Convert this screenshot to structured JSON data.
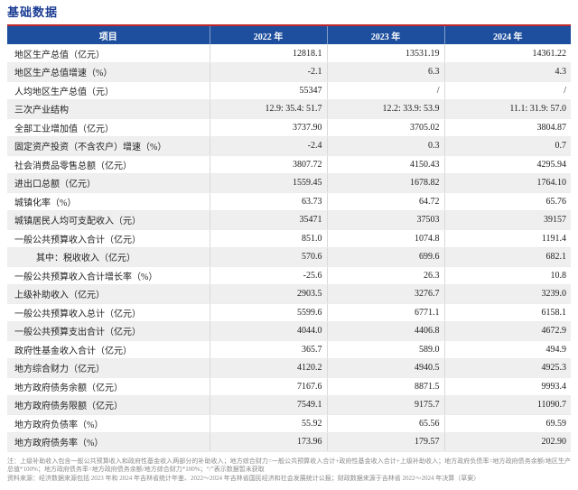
{
  "page": {
    "title": "基础数据"
  },
  "colors": {
    "header_bg": "#1e4f9e",
    "accent_red_line": "#c0272d",
    "title_blue": "#1c3d94",
    "alt_row_gray": "#efefef"
  },
  "table": {
    "columns": [
      "项目",
      "2022 年",
      "2023 年",
      "2024 年"
    ],
    "rows": [
      {
        "label": "地区生产总值（亿元）",
        "indent": false,
        "values": [
          "12818.1",
          "13531.19",
          "14361.22"
        ]
      },
      {
        "label": "地区生产总值增速（%）",
        "indent": false,
        "values": [
          "-2.1",
          "6.3",
          "4.3"
        ]
      },
      {
        "label": "人均地区生产总值（元）",
        "indent": false,
        "values": [
          "55347",
          "/",
          "/"
        ]
      },
      {
        "label": "三次产业结构",
        "indent": false,
        "values": [
          "12.9: 35.4: 51.7",
          "12.2: 33.9: 53.9",
          "11.1: 31.9: 57.0"
        ]
      },
      {
        "label": "全部工业增加值（亿元）",
        "indent": false,
        "values": [
          "3737.90",
          "3705.02",
          "3804.87"
        ]
      },
      {
        "label": "固定资产投资（不含农户）增速（%）",
        "indent": false,
        "values": [
          "-2.4",
          "0.3",
          "0.7"
        ]
      },
      {
        "label": "社会消费品零售总额（亿元）",
        "indent": false,
        "values": [
          "3807.72",
          "4150.43",
          "4295.94"
        ]
      },
      {
        "label": "进出口总额（亿元）",
        "indent": false,
        "values": [
          "1559.45",
          "1678.82",
          "1764.10"
        ]
      },
      {
        "label": "城镇化率（%）",
        "indent": false,
        "values": [
          "63.73",
          "64.72",
          "65.76"
        ]
      },
      {
        "label": "城镇居民人均可支配收入（元）",
        "indent": false,
        "values": [
          "35471",
          "37503",
          "39157"
        ]
      },
      {
        "label": "一般公共预算收入合计（亿元）",
        "indent": false,
        "values": [
          "851.0",
          "1074.8",
          "1191.4"
        ]
      },
      {
        "label": "其中：税收收入（亿元）",
        "indent": true,
        "values": [
          "570.6",
          "699.6",
          "682.1"
        ]
      },
      {
        "label": "一般公共预算收入合计增长率（%）",
        "indent": false,
        "values": [
          "-25.6",
          "26.3",
          "10.8"
        ]
      },
      {
        "label": "上级补助收入（亿元）",
        "indent": false,
        "values": [
          "2903.5",
          "3276.7",
          "3239.0"
        ]
      },
      {
        "label": "一般公共预算收入总计（亿元）",
        "indent": false,
        "values": [
          "5599.6",
          "6771.1",
          "6158.1"
        ]
      },
      {
        "label": "一般公共预算支出合计（亿元）",
        "indent": false,
        "values": [
          "4044.0",
          "4406.8",
          "4672.9"
        ]
      },
      {
        "label": "政府性基金收入合计（亿元）",
        "indent": false,
        "values": [
          "365.7",
          "589.0",
          "494.9"
        ]
      },
      {
        "label": "地方综合财力（亿元）",
        "indent": false,
        "values": [
          "4120.2",
          "4940.5",
          "4925.3"
        ]
      },
      {
        "label": "地方政府债务余额（亿元）",
        "indent": false,
        "values": [
          "7167.6",
          "8871.5",
          "9993.4"
        ]
      },
      {
        "label": "地方政府债务限额（亿元）",
        "indent": false,
        "values": [
          "7549.1",
          "9175.7",
          "11090.7"
        ]
      },
      {
        "label": "地方政府负债率（%）",
        "indent": false,
        "values": [
          "55.92",
          "65.56",
          "69.59"
        ]
      },
      {
        "label": "地方政府债务率（%）",
        "indent": false,
        "values": [
          "173.96",
          "179.57",
          "202.90"
        ]
      }
    ]
  },
  "footnotes": {
    "note": "注：上级补助收入包含一般公共预算收入和政府性基金收入两部分的补助收入；地方综合财力=一般公共预算收入合计+政府性基金收入合计+上级补助收入；地方政府负债率=地方政府债务余额/地区生产总值*100%；地方政府债务率=地方政府债务余额/地方综合财力*100%；“/”表示数据暂未获取",
    "source": "资料来源：经济数据来源包括 2023 年和 2024 年吉林省统计年鉴、2022～2024 年吉林省国民经济和社会发展统计公报；财政数据来源于吉林省 2022～2024 年决算（草案）"
  }
}
